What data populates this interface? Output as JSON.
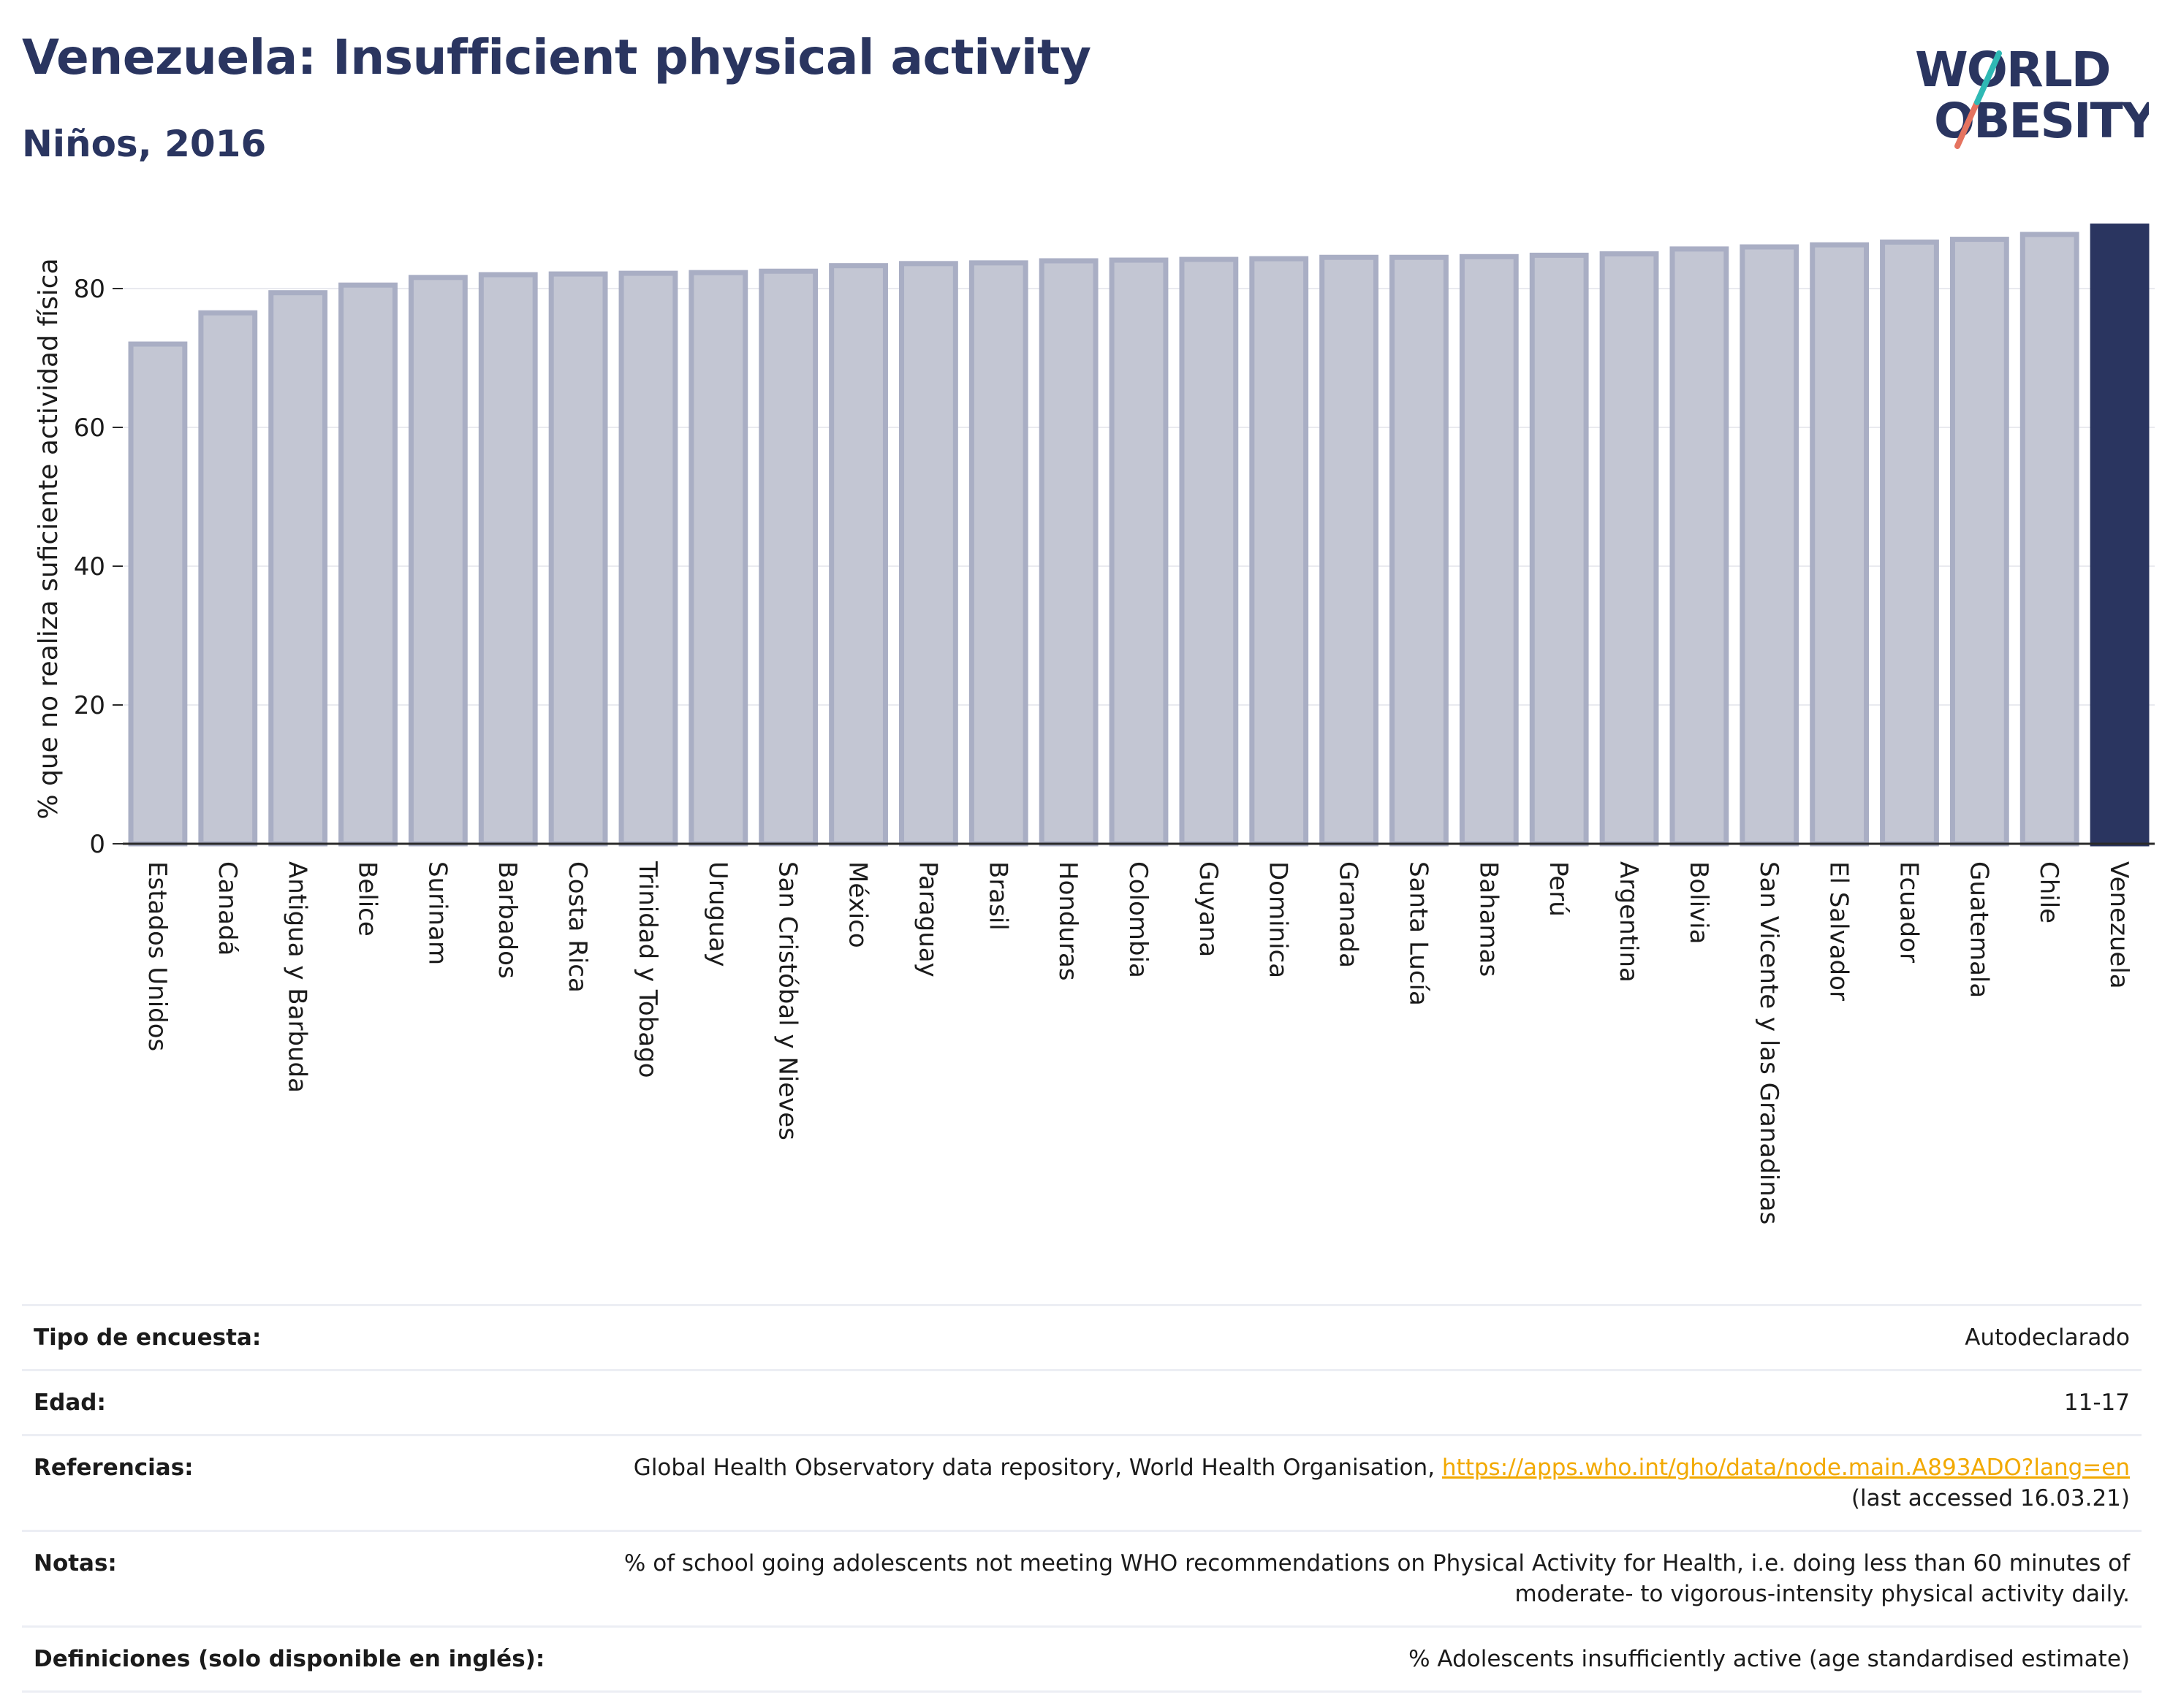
{
  "header": {
    "title": "Venezuela: Insufficient physical activity",
    "subtitle": "Niños, 2016"
  },
  "logo": {
    "line1": "WORLD",
    "line2": "OBESITY",
    "accent_teal": "#2fb9b4",
    "accent_red": "#e5735f",
    "text_color": "#2a3560"
  },
  "chart_data": {
    "type": "bar",
    "ylabel": "% que no realiza suficiente actividad física",
    "xlabel": "",
    "ylim": [
      0,
      90
    ],
    "yticks": [
      0,
      20,
      40,
      60,
      80
    ],
    "grid": true,
    "categories": [
      "Estados Unidos",
      "Canadá",
      "Antigua y Barbuda",
      "Belice",
      "Surinam",
      "Barbados",
      "Costa Rica",
      "Trinidad y Tobago",
      "Uruguay",
      "San Cristóbal y Nieves",
      "México",
      "Paraguay",
      "Brasil",
      "Honduras",
      "Colombia",
      "Guyana",
      "Dominica",
      "Granada",
      "Santa Lucía",
      "Bahamas",
      "Perú",
      "Argentina",
      "Bolivia",
      "San Vicente y las Granadinas",
      "El Salvador",
      "Ecuador",
      "Guatemala",
      "Chile",
      "Venezuela"
    ],
    "values": [
      72.0,
      76.5,
      79.4,
      80.5,
      81.6,
      82.0,
      82.1,
      82.2,
      82.3,
      82.5,
      83.3,
      83.6,
      83.7,
      84.0,
      84.1,
      84.2,
      84.3,
      84.5,
      84.5,
      84.6,
      84.8,
      85.0,
      85.7,
      86.0,
      86.3,
      86.7,
      87.1,
      87.8,
      89.0
    ],
    "highlight": "Venezuela",
    "colors": {
      "bar_fill": "#c3c6d3",
      "bar_edge": "#a9aec4",
      "highlight_fill": "#2a3560",
      "grid": "#e9eaef",
      "axis": "#2a2a2a"
    }
  },
  "meta": {
    "rows": [
      {
        "label": "Tipo de encuesta:",
        "value": "Autodeclarado"
      },
      {
        "label": "Edad:",
        "value": "11-17"
      },
      {
        "label": "Referencias:",
        "value": "Global Health Observatory data repository, World Health Organisation, ",
        "link": "https://apps.who.int/gho/data/node.main.A893ADO?lang=en",
        "extra": "(last accessed 16.03.21)"
      },
      {
        "label": "Notas:",
        "value": "% of school going adolescents not meeting WHO recommendations on Physical Activity for Health, i.e. doing less than 60 minutes of moderate- to vigorous-intensity physical activity daily."
      },
      {
        "label": "Definiciones (solo disponible en inglés):",
        "value": "% Adolescents insufficiently active (age standardised estimate)"
      }
    ]
  }
}
